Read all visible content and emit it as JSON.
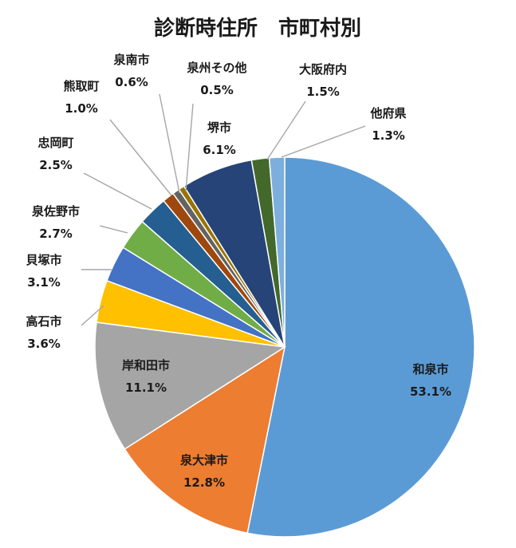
{
  "chart_data": {
    "type": "pie",
    "title": "診断時住所　市町村別",
    "slices": [
      {
        "name": "和泉市",
        "value": 53.1,
        "pct": "53.1%",
        "color": "#5B9BD5"
      },
      {
        "name": "泉大津市",
        "value": 12.8,
        "pct": "12.8%",
        "color": "#ED7D31"
      },
      {
        "name": "岸和田市",
        "value": 11.1,
        "pct": "11.1%",
        "color": "#A5A5A5"
      },
      {
        "name": "高石市",
        "value": 3.6,
        "pct": "3.6%",
        "color": "#FFC000"
      },
      {
        "name": "貝塚市",
        "value": 3.1,
        "pct": "3.1%",
        "color": "#4472C4"
      },
      {
        "name": "泉佐野市",
        "value": 2.7,
        "pct": "2.7%",
        "color": "#70AD47"
      },
      {
        "name": "忠岡町",
        "value": 2.5,
        "pct": "2.5%",
        "color": "#255E91"
      },
      {
        "name": "熊取町",
        "value": 1.0,
        "pct": "1.0%",
        "color": "#9E480E"
      },
      {
        "name": "泉南市",
        "value": 0.6,
        "pct": "0.6%",
        "color": "#636363"
      },
      {
        "name": "泉州その他",
        "value": 0.5,
        "pct": "0.5%",
        "color": "#997300"
      },
      {
        "name": "堺市",
        "value": 6.1,
        "pct": "6.1%",
        "color": "#264478"
      },
      {
        "name": "大阪府内",
        "value": 1.5,
        "pct": "1.5%",
        "color": "#43682B"
      },
      {
        "name": "他府県",
        "value": 1.3,
        "pct": "1.3%",
        "color": "#7CAFDD"
      }
    ]
  }
}
